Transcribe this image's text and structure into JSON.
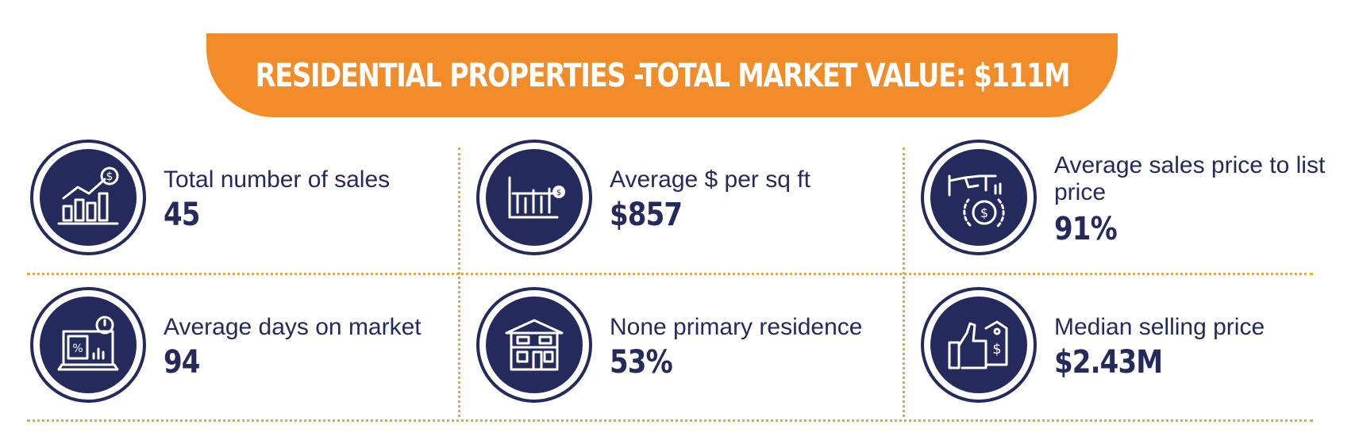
{
  "banner": {
    "title": "RESIDENTIAL PROPERTIES -TOTAL MARKET VALUE: $111M"
  },
  "stats": [
    {
      "label": "Total number of sales",
      "value": "45",
      "icon": "growth-chart-dollar-icon"
    },
    {
      "label": "Average $ per sq ft",
      "value": "$857",
      "icon": "bar-chart-coin-icon"
    },
    {
      "label": "Average sales price to list price",
      "value": "91%",
      "icon": "hand-coin-icon"
    },
    {
      "label": "Average days on market",
      "value": "94",
      "icon": "laptop-timer-icon"
    },
    {
      "label": "None primary residence",
      "value": "53%",
      "icon": "house-icon"
    },
    {
      "label": "Median selling price",
      "value": "$2.43M",
      "icon": "thumbs-up-tag-icon"
    }
  ],
  "colors": {
    "accent": "#F28C28",
    "dots": "#F5A623",
    "navy": "#252A5C"
  }
}
